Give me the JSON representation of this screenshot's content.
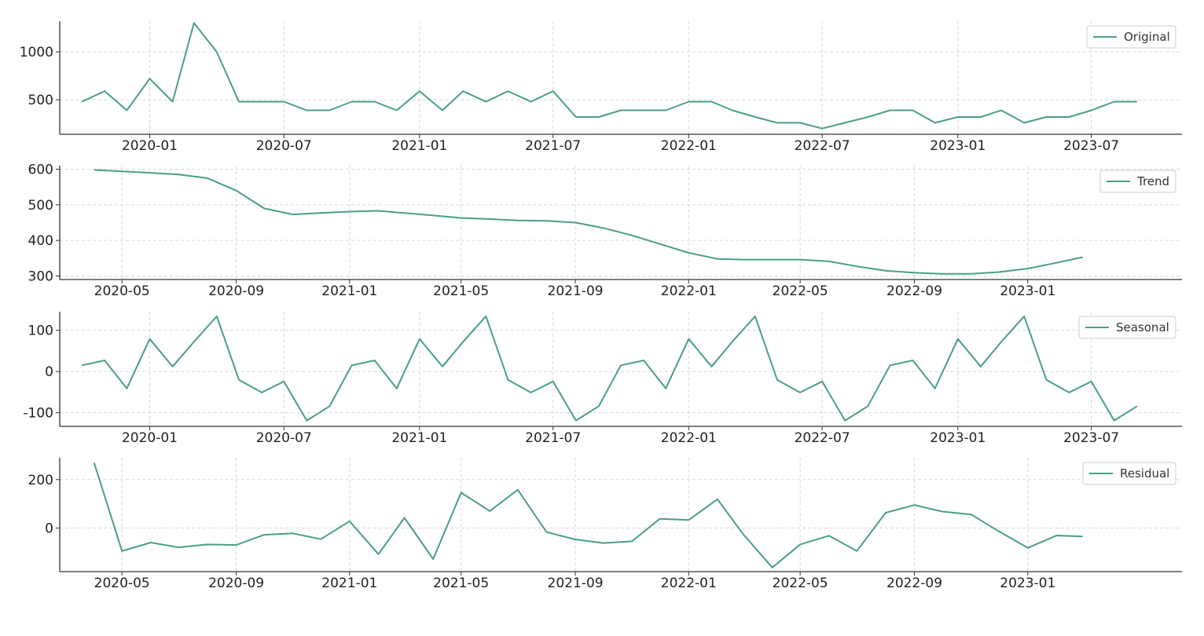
{
  "colors": {
    "line": "#4a9e89",
    "grid": "#d9d9d9",
    "axis": "#333333",
    "legend_border": "#cccccc"
  },
  "chart_data": [
    {
      "type": "line",
      "legend": "Original",
      "legend_position": "top-right",
      "grid": true,
      "x_type": "date",
      "xlim": [
        "2019-09-01",
        "2023-11-01"
      ],
      "ylim": [
        140,
        1320
      ],
      "x_ticks": [
        "2020-01",
        "2020-07",
        "2021-01",
        "2021-07",
        "2022-01",
        "2022-07",
        "2023-01",
        "2023-07"
      ],
      "y_ticks": [
        500,
        1000
      ],
      "x": [
        "2019-10",
        "2019-11",
        "2019-12",
        "2020-01",
        "2020-02",
        "2020-03",
        "2020-04",
        "2020-05",
        "2020-06",
        "2020-07",
        "2020-08",
        "2020-09",
        "2020-10",
        "2020-11",
        "2020-12",
        "2021-01",
        "2021-02",
        "2021-03",
        "2021-04",
        "2021-05",
        "2021-06",
        "2021-07",
        "2021-08",
        "2021-09",
        "2021-10",
        "2021-11",
        "2021-12",
        "2022-01",
        "2022-02",
        "2022-03",
        "2022-04",
        "2022-05",
        "2022-06",
        "2022-07",
        "2022-08",
        "2022-09",
        "2022-10",
        "2022-11",
        "2022-12",
        "2023-01",
        "2023-02",
        "2023-03",
        "2023-04",
        "2023-05",
        "2023-06",
        "2023-07",
        "2023-08",
        "2023-09"
      ],
      "y": [
        480,
        590,
        390,
        720,
        480,
        1300,
        1000,
        480,
        480,
        480,
        390,
        390,
        480,
        480,
        390,
        590,
        390,
        590,
        480,
        590,
        480,
        590,
        320,
        320,
        390,
        390,
        390,
        480,
        480,
        390,
        320,
        260,
        260,
        200,
        260,
        320,
        390,
        390,
        260,
        320,
        320,
        390,
        260,
        320,
        320,
        390,
        480,
        480
      ]
    },
    {
      "type": "line",
      "legend": "Trend",
      "legend_position": "top-right",
      "grid": true,
      "x_type": "date",
      "xlim": [
        "2020-02-24",
        "2023-06-16"
      ],
      "ylim": [
        290,
        610
      ],
      "x_ticks": [
        "2020-05",
        "2020-09",
        "2021-01",
        "2021-05",
        "2021-09",
        "2022-01",
        "2022-05",
        "2022-09",
        "2023-01"
      ],
      "y_ticks": [
        300,
        400,
        500,
        600
      ],
      "x": [
        "2020-04",
        "2020-05",
        "2020-06",
        "2020-07",
        "2020-08",
        "2020-09",
        "2020-10",
        "2020-11",
        "2020-12",
        "2021-01",
        "2021-02",
        "2021-03",
        "2021-04",
        "2021-05",
        "2021-06",
        "2021-07",
        "2021-08",
        "2021-09",
        "2021-10",
        "2021-11",
        "2021-12",
        "2022-01",
        "2022-02",
        "2022-03",
        "2022-04",
        "2022-05",
        "2022-06",
        "2022-07",
        "2022-08",
        "2022-09",
        "2022-10",
        "2022-11",
        "2022-12",
        "2023-01",
        "2023-02",
        "2023-03"
      ],
      "y": [
        598,
        594,
        590,
        585,
        575,
        540,
        490,
        473,
        477,
        481,
        483,
        477,
        470,
        463,
        460,
        456,
        455,
        450,
        435,
        414,
        390,
        365,
        348,
        346,
        346,
        346,
        341,
        327,
        315,
        309,
        306,
        306,
        311,
        321,
        337,
        353
      ]
    },
    {
      "type": "line",
      "legend": "Seasonal",
      "legend_position": "top-right",
      "grid": true,
      "x_type": "date",
      "xlim": [
        "2019-09-01",
        "2023-11-01"
      ],
      "ylim": [
        -133,
        145
      ],
      "x_ticks": [
        "2020-01",
        "2020-07",
        "2021-01",
        "2021-07",
        "2022-01",
        "2022-07",
        "2023-01",
        "2023-07"
      ],
      "y_ticks": [
        -100,
        0,
        100
      ],
      "x": [
        "2019-10",
        "2019-11",
        "2019-12",
        "2020-01",
        "2020-02",
        "2020-03",
        "2020-04",
        "2020-05",
        "2020-06",
        "2020-07",
        "2020-08",
        "2020-09",
        "2020-10",
        "2020-11",
        "2020-12",
        "2021-01",
        "2021-02",
        "2021-03",
        "2021-04",
        "2021-05",
        "2021-06",
        "2021-07",
        "2021-08",
        "2021-09",
        "2021-10",
        "2021-11",
        "2021-12",
        "2022-01",
        "2022-02",
        "2022-03",
        "2022-04",
        "2022-05",
        "2022-06",
        "2022-07",
        "2022-08",
        "2022-09",
        "2022-10",
        "2022-11",
        "2022-12",
        "2023-01",
        "2023-02",
        "2023-03",
        "2023-04",
        "2023-05",
        "2023-06",
        "2023-07",
        "2023-08",
        "2023-09"
      ],
      "y": [
        15,
        27,
        -41,
        79,
        12,
        72,
        134,
        -20,
        -51,
        -24,
        -119,
        -84,
        15,
        27,
        -41,
        79,
        12,
        72,
        134,
        -20,
        -51,
        -24,
        -119,
        -84,
        15,
        27,
        -41,
        79,
        12,
        72,
        134,
        -20,
        -51,
        -24,
        -119,
        -84,
        15,
        27,
        -41,
        79,
        12,
        72,
        134,
        -20,
        -51,
        -24,
        -119,
        -84
      ]
    },
    {
      "type": "line",
      "legend": "Residual",
      "legend_position": "top-right",
      "grid": true,
      "x_type": "date",
      "xlim": [
        "2020-02-24",
        "2023-06-16"
      ],
      "ylim": [
        -180,
        290
      ],
      "x_ticks": [
        "2020-05",
        "2020-09",
        "2021-01",
        "2021-05",
        "2021-09",
        "2022-01",
        "2022-05",
        "2022-09",
        "2023-01"
      ],
      "y_ticks": [
        0,
        200
      ],
      "x": [
        "2020-04",
        "2020-05",
        "2020-06",
        "2020-07",
        "2020-08",
        "2020-09",
        "2020-10",
        "2020-11",
        "2020-12",
        "2021-01",
        "2021-02",
        "2021-03",
        "2021-04",
        "2021-05",
        "2021-06",
        "2021-07",
        "2021-08",
        "2021-09",
        "2021-10",
        "2021-11",
        "2021-12",
        "2022-01",
        "2022-02",
        "2022-03",
        "2022-04",
        "2022-05",
        "2022-06",
        "2022-07",
        "2022-08",
        "2022-09",
        "2022-10",
        "2022-11",
        "2022-12",
        "2023-01",
        "2023-02",
        "2023-03"
      ],
      "y": [
        270,
        -95,
        -60,
        -80,
        -68,
        -70,
        -28,
        -22,
        -46,
        28,
        -108,
        42,
        -128,
        146,
        70,
        158,
        -17,
        -47,
        -62,
        -55,
        38,
        33,
        119,
        -27,
        -163,
        -68,
        -32,
        -95,
        63,
        95,
        68,
        56,
        -14,
        -82,
        -31,
        -35
      ]
    }
  ]
}
